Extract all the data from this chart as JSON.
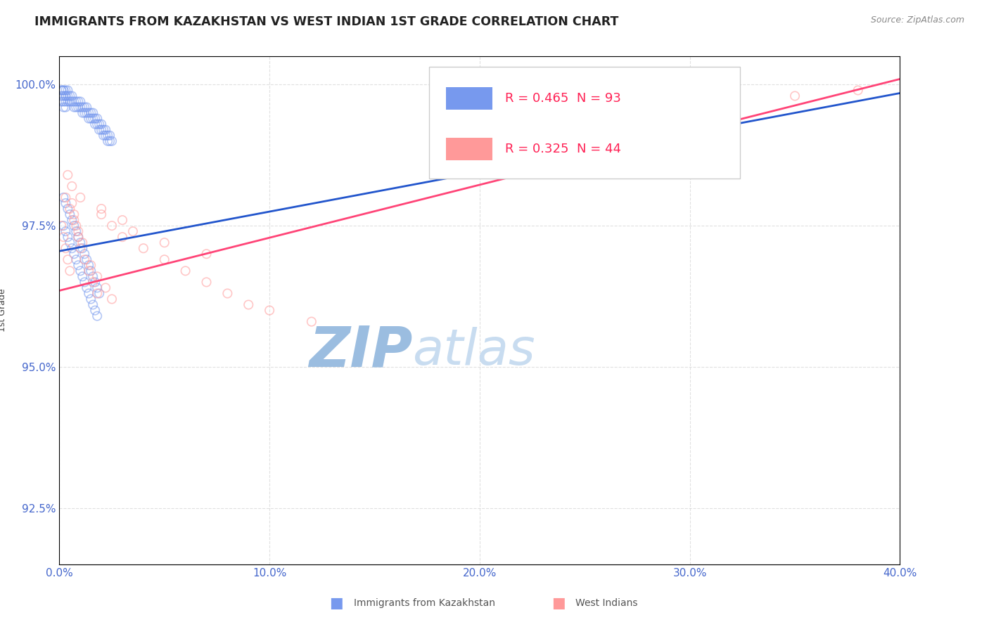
{
  "title": "IMMIGRANTS FROM KAZAKHSTAN VS WEST INDIAN 1ST GRADE CORRELATION CHART",
  "source_text": "Source: ZipAtlas.com",
  "ylabel": "1st Grade",
  "xlim": [
    0.0,
    0.4
  ],
  "ylim": [
    0.915,
    1.005
  ],
  "yticks": [
    0.925,
    0.95,
    0.975,
    1.0
  ],
  "ytick_labels": [
    "92.5%",
    "95.0%",
    "97.5%",
    "100.0%"
  ],
  "xticks": [
    0.0,
    0.1,
    0.2,
    0.3,
    0.4
  ],
  "xtick_labels": [
    "0.0%",
    "10.0%",
    "20.0%",
    "30.0%",
    "40.0%"
  ],
  "blue_R": 0.465,
  "blue_N": 93,
  "pink_R": 0.325,
  "pink_N": 44,
  "blue_color": "#7799EE",
  "pink_color": "#FF9999",
  "blue_line_color": "#2255CC",
  "pink_line_color": "#FF4477",
  "blue_x": [
    0.001,
    0.001,
    0.001,
    0.001,
    0.002,
    0.002,
    0.002,
    0.002,
    0.002,
    0.003,
    0.003,
    0.003,
    0.003,
    0.003,
    0.004,
    0.004,
    0.004,
    0.005,
    0.005,
    0.006,
    0.006,
    0.007,
    0.007,
    0.008,
    0.008,
    0.009,
    0.009,
    0.01,
    0.01,
    0.011,
    0.011,
    0.012,
    0.012,
    0.013,
    0.013,
    0.014,
    0.014,
    0.015,
    0.015,
    0.016,
    0.016,
    0.017,
    0.017,
    0.018,
    0.018,
    0.019,
    0.019,
    0.02,
    0.02,
    0.021,
    0.021,
    0.022,
    0.022,
    0.023,
    0.023,
    0.024,
    0.024,
    0.025,
    0.002,
    0.003,
    0.004,
    0.005,
    0.006,
    0.007,
    0.008,
    0.009,
    0.01,
    0.011,
    0.012,
    0.013,
    0.014,
    0.015,
    0.016,
    0.017,
    0.018,
    0.002,
    0.003,
    0.004,
    0.005,
    0.006,
    0.007,
    0.008,
    0.009,
    0.01,
    0.011,
    0.012,
    0.013,
    0.014,
    0.015,
    0.016,
    0.017,
    0.018,
    0.019
  ],
  "blue_y": [
    0.999,
    0.999,
    0.998,
    0.997,
    0.999,
    0.999,
    0.998,
    0.997,
    0.996,
    0.999,
    0.998,
    0.998,
    0.997,
    0.996,
    0.999,
    0.998,
    0.997,
    0.998,
    0.997,
    0.998,
    0.997,
    0.997,
    0.996,
    0.997,
    0.996,
    0.997,
    0.996,
    0.997,
    0.996,
    0.996,
    0.995,
    0.996,
    0.995,
    0.996,
    0.995,
    0.995,
    0.994,
    0.995,
    0.994,
    0.995,
    0.994,
    0.994,
    0.993,
    0.994,
    0.993,
    0.993,
    0.992,
    0.993,
    0.992,
    0.992,
    0.991,
    0.992,
    0.991,
    0.991,
    0.99,
    0.991,
    0.99,
    0.99,
    0.975,
    0.974,
    0.973,
    0.972,
    0.971,
    0.97,
    0.969,
    0.968,
    0.967,
    0.966,
    0.965,
    0.964,
    0.963,
    0.962,
    0.961,
    0.96,
    0.959,
    0.98,
    0.979,
    0.978,
    0.977,
    0.976,
    0.975,
    0.974,
    0.973,
    0.972,
    0.971,
    0.97,
    0.969,
    0.968,
    0.967,
    0.966,
    0.965,
    0.964,
    0.963
  ],
  "pink_x": [
    0.001,
    0.002,
    0.003,
    0.004,
    0.005,
    0.006,
    0.007,
    0.008,
    0.009,
    0.01,
    0.012,
    0.014,
    0.016,
    0.018,
    0.02,
    0.025,
    0.03,
    0.04,
    0.05,
    0.06,
    0.07,
    0.08,
    0.09,
    0.1,
    0.12,
    0.003,
    0.005,
    0.007,
    0.009,
    0.011,
    0.015,
    0.018,
    0.022,
    0.025,
    0.03,
    0.035,
    0.05,
    0.07,
    0.004,
    0.006,
    0.01,
    0.02,
    0.38,
    0.35
  ],
  "pink_y": [
    0.975,
    0.973,
    0.971,
    0.969,
    0.967,
    0.979,
    0.977,
    0.975,
    0.973,
    0.971,
    0.969,
    0.967,
    0.965,
    0.963,
    0.977,
    0.975,
    0.973,
    0.971,
    0.969,
    0.967,
    0.965,
    0.963,
    0.961,
    0.96,
    0.958,
    0.98,
    0.978,
    0.976,
    0.974,
    0.972,
    0.968,
    0.966,
    0.964,
    0.962,
    0.976,
    0.974,
    0.972,
    0.97,
    0.984,
    0.982,
    0.98,
    0.978,
    0.999,
    0.998
  ],
  "trend_blue_x0": 0.0,
  "trend_blue_x1": 0.4,
  "trend_blue_y0": 0.9705,
  "trend_blue_y1": 0.9985,
  "trend_pink_x0": 0.0,
  "trend_pink_x1": 0.4,
  "trend_pink_y0": 0.9635,
  "trend_pink_y1": 1.001,
  "watermark_zip": "ZIP",
  "watermark_atlas": "atlas",
  "watermark_color": "#C8D8F0",
  "background_color": "#FFFFFF",
  "title_color": "#222222",
  "axis_color": "#4466CC",
  "grid_color": "#CCCCCC",
  "legend_text_color": "#3355BB",
  "legend_n_color": "#FF2255"
}
